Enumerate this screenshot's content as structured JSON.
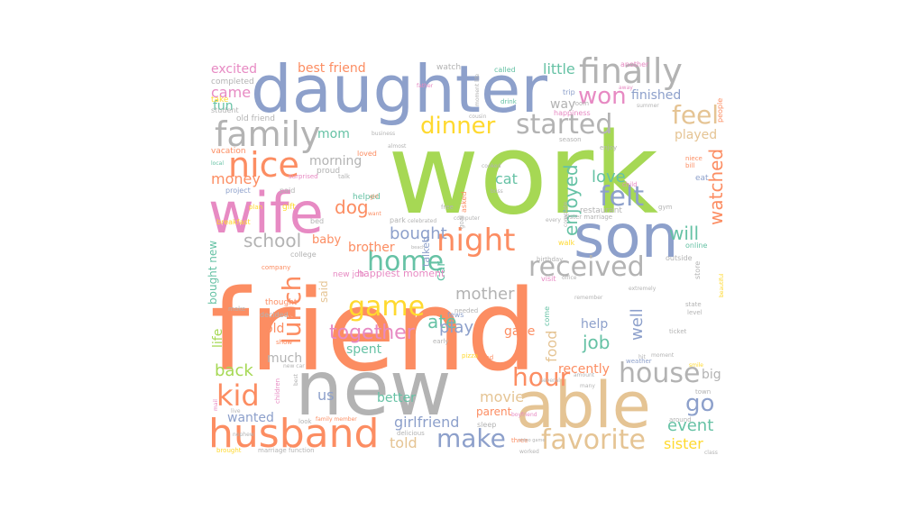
{
  "palette": {
    "green": "#a6d854",
    "orange": "#fc8d62",
    "blue": "#8da0cb",
    "pink": "#e78ac3",
    "teal": "#66c2a5",
    "yellow": "#ffd92f",
    "tan": "#e5c494",
    "gray": "#b3b3b3"
  },
  "words": [
    {
      "text": "work",
      "color": "green"
    },
    {
      "text": "friend",
      "color": "orange"
    },
    {
      "text": "daughter",
      "color": "blue"
    },
    {
      "text": "new",
      "color": "gray"
    },
    {
      "text": "son",
      "color": "blue"
    },
    {
      "text": "wife",
      "color": "pink"
    },
    {
      "text": "able",
      "color": "tan"
    },
    {
      "text": "husband",
      "color": "orange"
    },
    {
      "text": "family",
      "color": "gray"
    },
    {
      "text": "finally",
      "color": "gray"
    },
    {
      "text": "nice",
      "color": "orange"
    },
    {
      "text": "night",
      "color": "orange"
    },
    {
      "text": "home",
      "color": "teal"
    },
    {
      "text": "game",
      "color": "yellow"
    },
    {
      "text": "dinner",
      "color": "yellow"
    },
    {
      "text": "started",
      "color": "gray"
    },
    {
      "text": "received",
      "color": "gray"
    },
    {
      "text": "favorite",
      "color": "tan"
    },
    {
      "text": "make",
      "color": "blue"
    },
    {
      "text": "house",
      "color": "gray"
    },
    {
      "text": "kid",
      "color": "orange"
    },
    {
      "text": "won",
      "color": "pink"
    },
    {
      "text": "feel",
      "color": "tan"
    },
    {
      "text": "felt",
      "color": "blue"
    },
    {
      "text": "hour",
      "color": "orange"
    },
    {
      "text": "lunch",
      "color": "orange"
    },
    {
      "text": "together",
      "color": "pink"
    },
    {
      "text": "go",
      "color": "blue"
    },
    {
      "text": "school",
      "color": "gray"
    },
    {
      "text": "bought",
      "color": "blue"
    },
    {
      "text": "mother",
      "color": "gray"
    },
    {
      "text": "ate",
      "color": "teal"
    },
    {
      "text": "love",
      "color": "teal"
    },
    {
      "text": "enjoyed",
      "color": "teal"
    },
    {
      "text": "watched",
      "color": "orange"
    },
    {
      "text": "job",
      "color": "teal"
    },
    {
      "text": "event",
      "color": "teal"
    },
    {
      "text": "sister",
      "color": "yellow"
    },
    {
      "text": "back",
      "color": "green"
    },
    {
      "text": "dog",
      "color": "orange"
    },
    {
      "text": "will",
      "color": "teal"
    },
    {
      "text": "came",
      "color": "pink"
    },
    {
      "text": "money",
      "color": "orange"
    },
    {
      "text": "movie",
      "color": "tan"
    },
    {
      "text": "us",
      "color": "blue"
    },
    {
      "text": "play",
      "color": "blue"
    },
    {
      "text": "girlfriend",
      "color": "blue"
    },
    {
      "text": "told",
      "color": "tan"
    },
    {
      "text": "little",
      "color": "teal"
    },
    {
      "text": "best friend",
      "color": "orange"
    },
    {
      "text": "excited",
      "color": "pink"
    },
    {
      "text": "well",
      "color": "blue"
    },
    {
      "text": "food",
      "color": "tan"
    },
    {
      "text": "cat",
      "color": "teal"
    },
    {
      "text": "wanted",
      "color": "blue"
    },
    {
      "text": "life",
      "color": "green"
    },
    {
      "text": "finished",
      "color": "blue"
    },
    {
      "text": "mom",
      "color": "teal"
    },
    {
      "text": "way",
      "color": "gray"
    },
    {
      "text": "fun",
      "color": "teal"
    },
    {
      "text": "morning",
      "color": "gray"
    },
    {
      "text": "car",
      "color": "teal"
    },
    {
      "text": "brother",
      "color": "orange"
    },
    {
      "text": "baby",
      "color": "orange"
    },
    {
      "text": "gave",
      "color": "orange"
    },
    {
      "text": "spent",
      "color": "teal"
    },
    {
      "text": "old",
      "color": "orange"
    },
    {
      "text": "much",
      "color": "gray"
    },
    {
      "text": "help",
      "color": "blue"
    },
    {
      "text": "recently",
      "color": "orange"
    },
    {
      "text": "better",
      "color": "teal"
    },
    {
      "text": "parent",
      "color": "orange"
    },
    {
      "text": "played",
      "color": "tan"
    },
    {
      "text": "big",
      "color": "gray"
    },
    {
      "text": "bought new",
      "color": "teal"
    },
    {
      "text": "said",
      "color": "tan"
    },
    {
      "text": "new job",
      "color": "pink"
    },
    {
      "text": "happiest moment",
      "color": "pink"
    },
    {
      "text": "talked",
      "color": "blue"
    },
    {
      "text": "completed",
      "color": "gray"
    },
    {
      "text": "take",
      "color": "yellow"
    },
    {
      "text": "student",
      "color": "gray"
    },
    {
      "text": "old friend",
      "color": "gray"
    },
    {
      "text": "vacation",
      "color": "orange"
    },
    {
      "text": "watch",
      "color": "gray"
    },
    {
      "text": "called",
      "color": "teal"
    },
    {
      "text": "another",
      "color": "pink"
    },
    {
      "text": "trip",
      "color": "blue"
    },
    {
      "text": "room",
      "color": "gray"
    },
    {
      "text": "happiness",
      "color": "pink"
    },
    {
      "text": "people",
      "color": "orange"
    },
    {
      "text": "eat",
      "color": "blue"
    },
    {
      "text": "restaurant",
      "color": "gray"
    },
    {
      "text": "online",
      "color": "teal"
    },
    {
      "text": "outside",
      "color": "gray"
    },
    {
      "text": "birthday",
      "color": "gray"
    },
    {
      "text": "visit",
      "color": "pink"
    },
    {
      "text": "come",
      "color": "teal"
    },
    {
      "text": "walk",
      "color": "yellow"
    },
    {
      "text": "park",
      "color": "gray"
    },
    {
      "text": "celebrated",
      "color": "gray"
    },
    {
      "text": "computer",
      "color": "gray"
    },
    {
      "text": "drink",
      "color": "teal"
    },
    {
      "text": "cousin",
      "color": "gray"
    },
    {
      "text": "moment life",
      "color": "gray"
    },
    {
      "text": "business",
      "color": "gray"
    },
    {
      "text": "almost",
      "color": "gray"
    },
    {
      "text": "helped",
      "color": "teal"
    },
    {
      "text": "proud",
      "color": "gray"
    },
    {
      "text": "loved",
      "color": "orange"
    },
    {
      "text": "surprised",
      "color": "pink"
    },
    {
      "text": "talk",
      "color": "gray"
    },
    {
      "text": "paid",
      "color": "gray"
    },
    {
      "text": "project",
      "color": "blue"
    },
    {
      "text": "gift",
      "color": "yellow"
    },
    {
      "text": "plan",
      "color": "yellow"
    },
    {
      "text": "bed",
      "color": "gray"
    },
    {
      "text": "girl",
      "color": "orange"
    },
    {
      "text": "want",
      "color": "orange"
    },
    {
      "text": "breakfast",
      "color": "yellow"
    },
    {
      "text": "college",
      "color": "gray"
    },
    {
      "text": "company",
      "color": "orange"
    },
    {
      "text": "thought",
      "color": "orange"
    },
    {
      "text": "decided",
      "color": "gray"
    },
    {
      "text": "make",
      "color": "gray"
    },
    {
      "text": "show",
      "color": "orange"
    },
    {
      "text": "look",
      "color": "gray"
    },
    {
      "text": "family member",
      "color": "orange"
    },
    {
      "text": "brought",
      "color": "yellow"
    },
    {
      "text": "marriage function",
      "color": "gray"
    },
    {
      "text": "three",
      "color": "orange"
    },
    {
      "text": "worked",
      "color": "gray"
    },
    {
      "text": "sleep",
      "color": "gray"
    },
    {
      "text": "boyfriend",
      "color": "pink"
    },
    {
      "text": "delicious",
      "color": "gray"
    },
    {
      "text": "early",
      "color": "gray"
    },
    {
      "text": "fews",
      "color": "blue"
    },
    {
      "text": "needed",
      "color": "gray"
    },
    {
      "text": "free",
      "color": "gray"
    },
    {
      "text": "enjoy",
      "color": "gray"
    },
    {
      "text": "child",
      "color": "pink"
    },
    {
      "text": "sister marriage",
      "color": "gray"
    },
    {
      "text": "every",
      "color": "gray"
    },
    {
      "text": "office",
      "color": "gray"
    },
    {
      "text": "remember",
      "color": "gray"
    },
    {
      "text": "extremely",
      "color": "gray"
    },
    {
      "text": "state",
      "color": "gray"
    },
    {
      "text": "level",
      "color": "gray"
    },
    {
      "text": "ticket",
      "color": "gray"
    },
    {
      "text": "weather",
      "color": "blue"
    },
    {
      "text": "hit",
      "color": "gray"
    },
    {
      "text": "town",
      "color": "gray"
    },
    {
      "text": "around",
      "color": "gray"
    },
    {
      "text": "class",
      "color": "gray"
    },
    {
      "text": "store",
      "color": "gray"
    },
    {
      "text": "beautiful",
      "color": "yellow"
    },
    {
      "text": "many",
      "color": "gray"
    },
    {
      "text": "amount",
      "color": "gray"
    },
    {
      "text": "several",
      "color": "gray"
    },
    {
      "text": "pizza",
      "color": "yellow"
    },
    {
      "text": "children",
      "color": "pink"
    },
    {
      "text": "best",
      "color": "gray"
    },
    {
      "text": "local",
      "color": "teal"
    },
    {
      "text": "mail",
      "color": "pink"
    },
    {
      "text": "live",
      "color": "gray"
    },
    {
      "text": "nephew",
      "color": "gray"
    },
    {
      "text": "cooked",
      "color": "gray"
    },
    {
      "text": "boss",
      "color": "gray"
    },
    {
      "text": "asked",
      "color": "orange"
    },
    {
      "text": "goal",
      "color": "gray"
    },
    {
      "text": "season",
      "color": "gray"
    },
    {
      "text": "niece",
      "color": "orange"
    },
    {
      "text": "bill",
      "color": "orange"
    },
    {
      "text": "gym",
      "color": "gray"
    },
    {
      "text": "summer",
      "color": "gray"
    },
    {
      "text": "away",
      "color": "pink"
    },
    {
      "text": "moment",
      "color": "gray"
    },
    {
      "text": "father",
      "color": "pink"
    },
    {
      "text": "beach",
      "color": "gray"
    },
    {
      "text": "complete",
      "color": "gray"
    },
    {
      "text": "dad",
      "color": "orange"
    },
    {
      "text": "new car",
      "color": "gray"
    },
    {
      "text": "smile",
      "color": "yellow"
    },
    {
      "text": "video game",
      "color": "gray"
    }
  ]
}
